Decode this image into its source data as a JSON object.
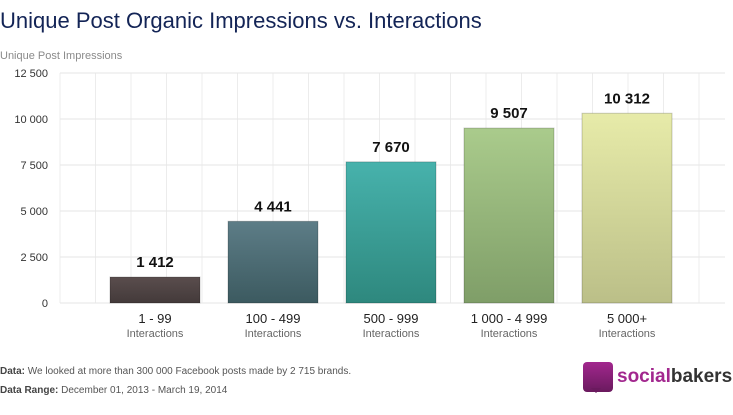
{
  "chart_data": {
    "type": "bar",
    "title": "Unique Post Organic Impressions vs. Interactions",
    "ylabel": "Unique Post Impressions",
    "xlabel": "",
    "categories": [
      "1 - 99",
      "100 - 499",
      "500 - 999",
      "1 000 - 4 999",
      "5 000+"
    ],
    "category_sublabel": "Interactions",
    "values": [
      1412,
      4441,
      7670,
      9507,
      10312
    ],
    "value_labels": [
      "1 412",
      "4 441",
      "7 670",
      "9 507",
      "10 312"
    ],
    "ylim": [
      0,
      12500
    ],
    "yticks": [
      0,
      2500,
      5000,
      7500,
      10000,
      12500
    ],
    "ytick_labels": [
      "0",
      "2 500",
      "5 000",
      "7 500",
      "10 000",
      "12 500"
    ],
    "grid": true,
    "colors": [
      [
        "#5a4d4d",
        "#433a3a"
      ],
      [
        "#5d7d87",
        "#3c5a60"
      ],
      [
        "#47b2ac",
        "#2e887e"
      ],
      [
        "#aacb8c",
        "#7f9e68"
      ],
      [
        "#e7eba9",
        "#bbbf88"
      ]
    ]
  },
  "footer": {
    "data_label": "Data:",
    "data_text": " We looked at more than 300 000 Facebook posts made by 2 715 brands.",
    "range_label": "Data Range:",
    "range_text": " December 01, 2013 - March 19, 2014"
  },
  "logo": {
    "part1": "social",
    "part2": "bakers"
  }
}
